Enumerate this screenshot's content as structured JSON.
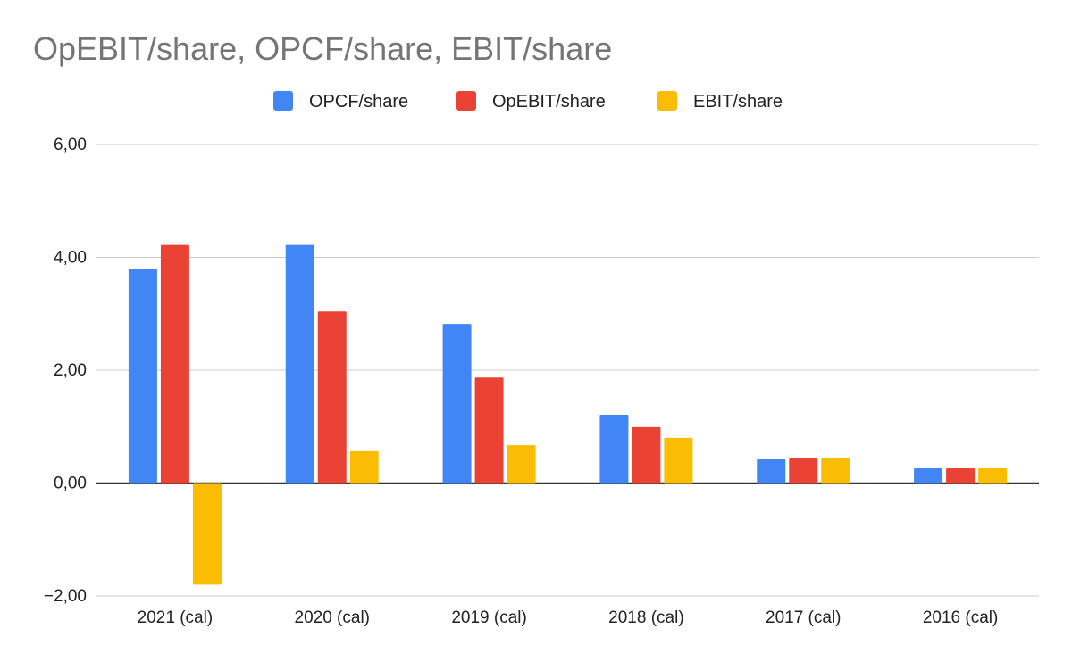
{
  "chart_data": {
    "type": "bar",
    "title": "OpEBIT/share, OPCF/share, EBIT/share",
    "categories": [
      "2021 (cal)",
      "2020 (cal)",
      "2019 (cal)",
      "2018 (cal)",
      "2017 (cal)",
      "2016 (cal)"
    ],
    "series": [
      {
        "name": "OPCF/share",
        "color": "#4285f4",
        "values": [
          3.8,
          4.22,
          2.82,
          1.21,
          0.42,
          0.26
        ]
      },
      {
        "name": "OpEBIT/share",
        "color": "#ea4335",
        "values": [
          4.22,
          3.04,
          1.87,
          0.99,
          0.45,
          0.26
        ]
      },
      {
        "name": "EBIT/share",
        "color": "#fbbc04",
        "values": [
          -1.8,
          0.58,
          0.67,
          0.8,
          0.45,
          0.26
        ]
      }
    ],
    "ylim": [
      -2,
      6
    ],
    "yticks": [
      -2,
      0,
      2,
      4,
      6
    ],
    "ytick_labels": [
      "−2,00",
      "0,00",
      "2,00",
      "4,00",
      "6,00"
    ],
    "grid": true,
    "legend_position": "top-center",
    "xlabel": "",
    "ylabel": ""
  }
}
